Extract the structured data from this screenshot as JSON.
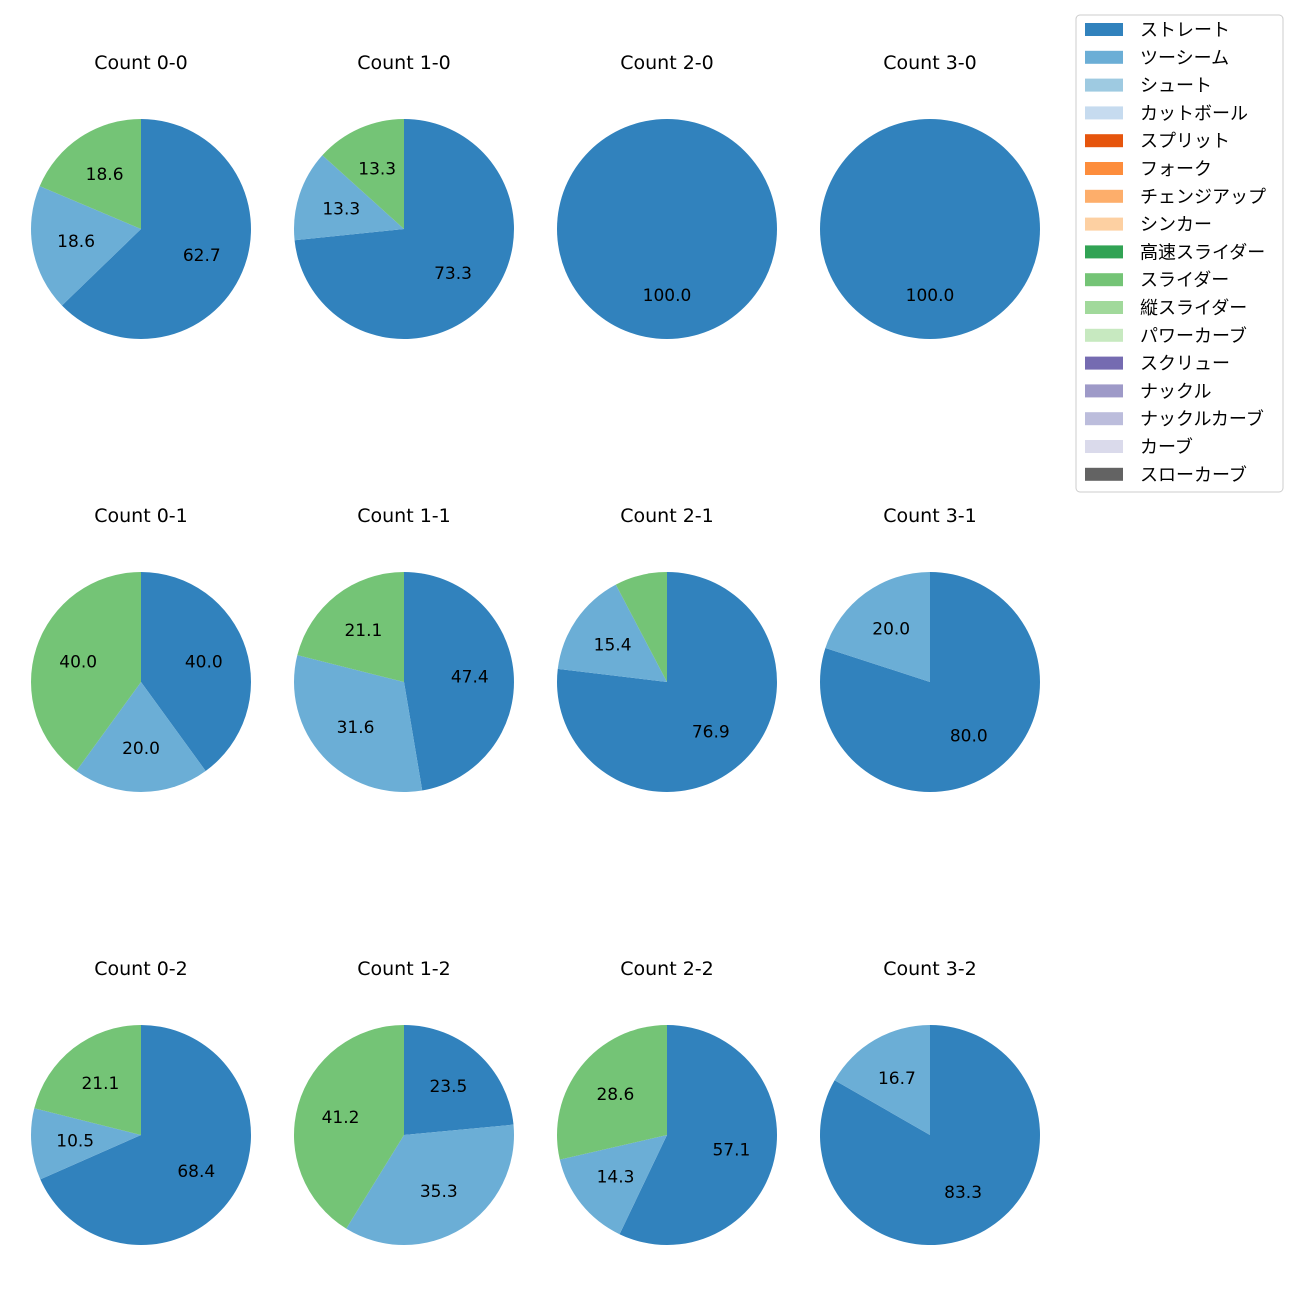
{
  "legend": {
    "items": [
      {
        "label": "ストレート",
        "color": "#3182bd"
      },
      {
        "label": "ツーシーム",
        "color": "#6baed6"
      },
      {
        "label": "シュート",
        "color": "#9ecae1"
      },
      {
        "label": "カットボール",
        "color": "#c6dbef"
      },
      {
        "label": "スプリット",
        "color": "#e6550d"
      },
      {
        "label": "フォーク",
        "color": "#fd8d3c"
      },
      {
        "label": "チェンジアップ",
        "color": "#fdae6b"
      },
      {
        "label": "シンカー",
        "color": "#fdd0a2"
      },
      {
        "label": "高速スライダー",
        "color": "#31a354"
      },
      {
        "label": "スライダー",
        "color": "#74c476"
      },
      {
        "label": "縦スライダー",
        "color": "#a1d99b"
      },
      {
        "label": "パワーカーブ",
        "color": "#c7e9c0"
      },
      {
        "label": "スクリュー",
        "color": "#756bb1"
      },
      {
        "label": "ナックル",
        "color": "#9e9ac8"
      },
      {
        "label": "ナックルカーブ",
        "color": "#bcbddc"
      },
      {
        "label": "カーブ",
        "color": "#dadaeb"
      },
      {
        "label": "スローカーブ",
        "color": "#636363"
      }
    ]
  },
  "chart_data": [
    {
      "type": "pie",
      "title": "Count 0-0",
      "slices": [
        {
          "pitch": "ストレート",
          "value": 62.7,
          "label": "62.7"
        },
        {
          "pitch": "ツーシーム",
          "value": 18.6,
          "label": "18.6"
        },
        {
          "pitch": "スライダー",
          "value": 18.6,
          "label": "18.6"
        }
      ]
    },
    {
      "type": "pie",
      "title": "Count 1-0",
      "slices": [
        {
          "pitch": "ストレート",
          "value": 73.3,
          "label": "73.3"
        },
        {
          "pitch": "ツーシーム",
          "value": 13.3,
          "label": "13.3"
        },
        {
          "pitch": "スライダー",
          "value": 13.3,
          "label": "13.3"
        }
      ]
    },
    {
      "type": "pie",
      "title": "Count 2-0",
      "slices": [
        {
          "pitch": "ストレート",
          "value": 100.0,
          "label": "100.0"
        }
      ]
    },
    {
      "type": "pie",
      "title": "Count 3-0",
      "slices": [
        {
          "pitch": "ストレート",
          "value": 100.0,
          "label": "100.0"
        }
      ]
    },
    {
      "type": "pie",
      "title": "Count 0-1",
      "slices": [
        {
          "pitch": "ストレート",
          "value": 40.0,
          "label": "40.0"
        },
        {
          "pitch": "ツーシーム",
          "value": 20.0,
          "label": "20.0"
        },
        {
          "pitch": "スライダー",
          "value": 40.0,
          "label": "40.0"
        }
      ]
    },
    {
      "type": "pie",
      "title": "Count 1-1",
      "slices": [
        {
          "pitch": "ストレート",
          "value": 47.4,
          "label": "47.4"
        },
        {
          "pitch": "ツーシーム",
          "value": 31.6,
          "label": "31.6"
        },
        {
          "pitch": "スライダー",
          "value": 21.1,
          "label": "21.1"
        }
      ]
    },
    {
      "type": "pie",
      "title": "Count 2-1",
      "slices": [
        {
          "pitch": "ストレート",
          "value": 76.9,
          "label": "76.9"
        },
        {
          "pitch": "ツーシーム",
          "value": 15.4,
          "label": "15.4"
        },
        {
          "pitch": "スライダー",
          "value": 7.7,
          "label": ""
        }
      ]
    },
    {
      "type": "pie",
      "title": "Count 3-1",
      "slices": [
        {
          "pitch": "ストレート",
          "value": 80.0,
          "label": "80.0"
        },
        {
          "pitch": "ツーシーム",
          "value": 20.0,
          "label": "20.0"
        }
      ]
    },
    {
      "type": "pie",
      "title": "Count 0-2",
      "slices": [
        {
          "pitch": "ストレート",
          "value": 68.4,
          "label": "68.4"
        },
        {
          "pitch": "ツーシーム",
          "value": 10.5,
          "label": "10.5"
        },
        {
          "pitch": "スライダー",
          "value": 21.1,
          "label": "21.1"
        }
      ]
    },
    {
      "type": "pie",
      "title": "Count 1-2",
      "slices": [
        {
          "pitch": "ストレート",
          "value": 23.5,
          "label": "23.5"
        },
        {
          "pitch": "ツーシーム",
          "value": 35.3,
          "label": "35.3"
        },
        {
          "pitch": "スライダー",
          "value": 41.2,
          "label": "41.2"
        }
      ]
    },
    {
      "type": "pie",
      "title": "Count 2-2",
      "slices": [
        {
          "pitch": "ストレート",
          "value": 57.1,
          "label": "57.1"
        },
        {
          "pitch": "ツーシーム",
          "value": 14.3,
          "label": "14.3"
        },
        {
          "pitch": "スライダー",
          "value": 28.6,
          "label": "28.6"
        }
      ]
    },
    {
      "type": "pie",
      "title": "Count 3-2",
      "slices": [
        {
          "pitch": "ストレート",
          "value": 83.3,
          "label": "83.3"
        },
        {
          "pitch": "ツーシーム",
          "value": 16.7,
          "label": "16.7"
        }
      ]
    }
  ]
}
